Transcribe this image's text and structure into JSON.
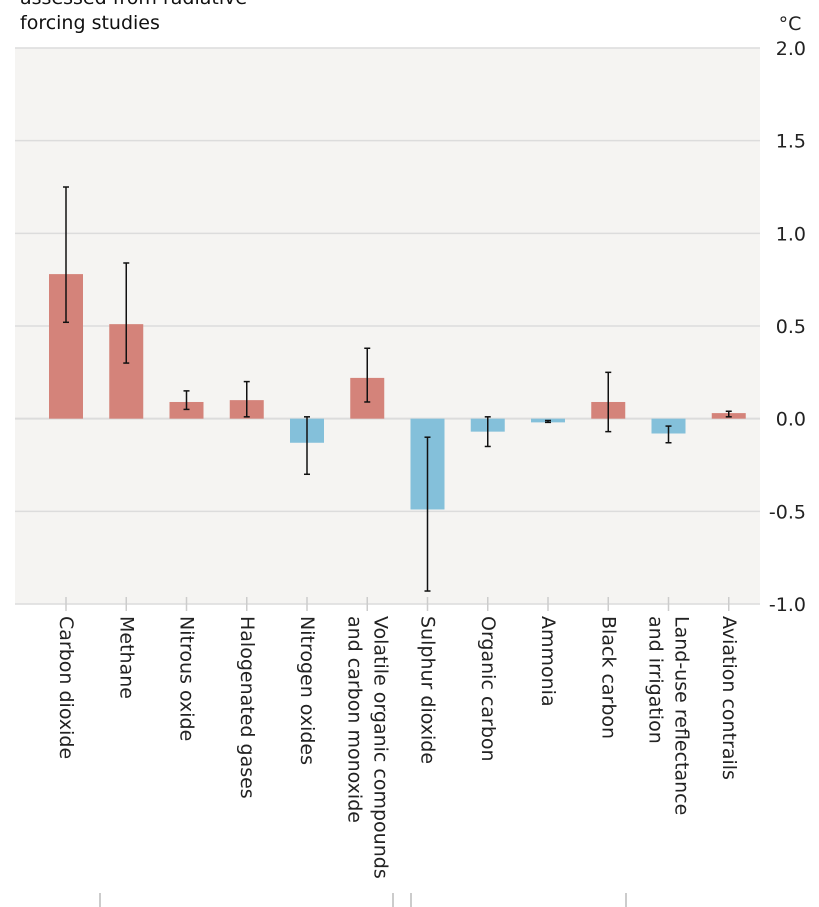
{
  "chart_data": {
    "type": "bar",
    "title_lines": [
      "assessed from radiative",
      "forcing studies"
    ],
    "unit": "°C",
    "categories": [
      [
        "Carbon dioxide"
      ],
      [
        "Methane"
      ],
      [
        "Nitrous oxide"
      ],
      [
        "Halogenated gases"
      ],
      [
        "Nitrogen oxides"
      ],
      [
        "Volatile organic compounds",
        "and carbon monoxide"
      ],
      [
        "Sulphur dioxide"
      ],
      [
        "Organic carbon"
      ],
      [
        "Ammonia"
      ],
      [
        "Black carbon"
      ],
      [
        "Land-use reflectance",
        "and irrigation"
      ],
      [
        "Aviation contrails"
      ]
    ],
    "values": [
      0.78,
      0.51,
      0.09,
      0.1,
      -0.13,
      0.22,
      -0.49,
      -0.07,
      -0.02,
      0.09,
      -0.08,
      0.03
    ],
    "error_high": [
      1.25,
      0.84,
      0.15,
      0.2,
      0.01,
      0.38,
      -0.1,
      0.01,
      -0.01,
      0.25,
      -0.04,
      0.04
    ],
    "error_low": [
      0.52,
      0.3,
      0.05,
      0.01,
      -0.3,
      0.09,
      -0.93,
      -0.15,
      -0.02,
      -0.07,
      -0.13,
      0.01
    ],
    "ylim": [
      -1.0,
      2.0
    ],
    "yticks": [
      "2.0",
      "1.5",
      "1.0",
      "0.5",
      "0.0",
      "-0.5",
      "-1.0"
    ],
    "ytick_values": [
      2.0,
      1.5,
      1.0,
      0.5,
      0.0,
      -0.5,
      -1.0
    ],
    "grid": true,
    "colors": {
      "positive": "#d4837a",
      "negative": "#84c0da",
      "background": "#f5f4f2",
      "grid": "#dcdcdc"
    }
  }
}
